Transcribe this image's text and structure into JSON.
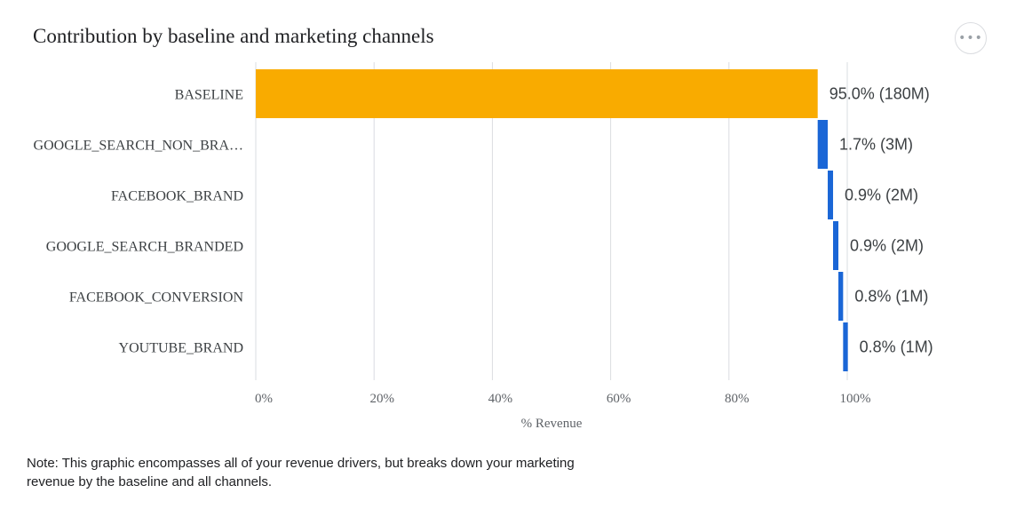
{
  "header": {
    "title": "Contribution by baseline and marketing channels",
    "more_icon": "more-horizontal-icon",
    "more_glyph": "•••"
  },
  "chart_data": {
    "type": "bar",
    "orientation": "horizontal",
    "style": "waterfall",
    "title": "Contribution by baseline and marketing channels",
    "xlabel": "% Revenue",
    "ylabel": "",
    "xlim": [
      0,
      100
    ],
    "xticks": [
      0,
      20,
      40,
      60,
      80,
      100
    ],
    "xtick_labels": [
      "0%",
      "20%",
      "40%",
      "60%",
      "80%",
      "100%"
    ],
    "grid": true,
    "categories": [
      "BASELINE",
      "GOOGLE_SEARCH_NON_BRA…",
      "FACEBOOK_BRAND",
      "GOOGLE_SEARCH_BRANDED",
      "FACEBOOK_CONVERSION",
      "YOUTUBE_BRAND"
    ],
    "values": [
      95.0,
      1.7,
      0.9,
      0.9,
      0.8,
      0.8
    ],
    "data_labels": [
      "95.0% (180M)",
      "1.7% (3M)",
      "0.9% (2M)",
      "0.9% (2M)",
      "0.8% (1M)",
      "0.8% (1M)"
    ],
    "colors": [
      "#F9AB00",
      "#1A66D6",
      "#1A66D6",
      "#1A66D6",
      "#1A66D6",
      "#1A66D6"
    ]
  },
  "note": {
    "text": "Note: This graphic encompasses all of your revenue drivers, but breaks down your marketing revenue by the baseline and all channels."
  }
}
